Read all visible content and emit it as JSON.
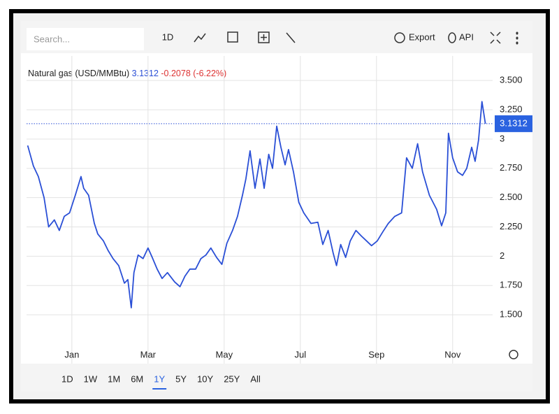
{
  "toolbar": {
    "search_placeholder": "Search...",
    "interval": "1D",
    "export": "Export",
    "api": "API"
  },
  "ranges": {
    "items": [
      "1D",
      "1W",
      "1M",
      "6M",
      "1Y",
      "5Y",
      "10Y",
      "25Y",
      "All"
    ],
    "active": 4
  },
  "chart_data": {
    "type": "line",
    "last_price": 3.1312,
    "change": -0.2078,
    "change_pct": "(-6.22%)",
    "series": [
      {
        "name": "Natural gas (USD/MMBtu)",
        "color": "#2a4fd6",
        "x": [
          -0.16,
          -0.01,
          0.12,
          0.27,
          0.39,
          0.54,
          0.67,
          0.8,
          0.94,
          1.09,
          1.24,
          1.31,
          1.44,
          1.59,
          1.68,
          1.83,
          1.95,
          2.08,
          2.23,
          2.38,
          2.47,
          2.56,
          2.63,
          2.74,
          2.87,
          3.0,
          3.11,
          3.24,
          3.37,
          3.51,
          3.7,
          3.84,
          3.97,
          4.1,
          4.25,
          4.39,
          4.52,
          4.65,
          4.8,
          4.94,
          5.07,
          5.22,
          5.35,
          5.48,
          5.57,
          5.68,
          5.81,
          5.94,
          6.05,
          6.17,
          6.27,
          6.38,
          6.49,
          6.6,
          6.69,
          6.82,
          6.96,
          7.09,
          7.28,
          7.46,
          7.59,
          7.73,
          7.86,
          7.95,
          8.06,
          8.19,
          8.31,
          8.46,
          8.61,
          8.74,
          8.87,
          9.02,
          9.17,
          9.31,
          9.48,
          9.66,
          9.79,
          9.94,
          10.08,
          10.21,
          10.39,
          10.58,
          10.71,
          10.82,
          10.89,
          11.0,
          11.13,
          11.26,
          11.37,
          11.5,
          11.59,
          11.68,
          11.77,
          11.86
        ],
        "values": [
          2.945,
          2.77,
          2.68,
          2.5,
          2.25,
          2.31,
          2.22,
          2.34,
          2.37,
          2.52,
          2.68,
          2.58,
          2.52,
          2.28,
          2.19,
          2.13,
          2.05,
          1.98,
          1.92,
          1.77,
          1.8,
          1.56,
          1.86,
          2.01,
          1.98,
          2.07,
          1.99,
          1.89,
          1.81,
          1.86,
          1.78,
          1.74,
          1.83,
          1.89,
          1.89,
          1.98,
          2.01,
          2.07,
          1.99,
          1.93,
          2.11,
          2.22,
          2.34,
          2.52,
          2.66,
          2.9,
          2.58,
          2.83,
          2.58,
          2.87,
          2.75,
          3.11,
          2.93,
          2.78,
          2.91,
          2.72,
          2.46,
          2.37,
          2.28,
          2.29,
          2.1,
          2.22,
          2.03,
          1.92,
          2.1,
          1.99,
          2.13,
          2.22,
          2.17,
          2.13,
          2.09,
          2.13,
          2.21,
          2.28,
          2.34,
          2.37,
          2.84,
          2.75,
          2.96,
          2.72,
          2.52,
          2.4,
          2.26,
          2.37,
          3.05,
          2.84,
          2.72,
          2.69,
          2.75,
          2.93,
          2.81,
          2.99,
          3.32,
          3.1312
        ]
      }
    ],
    "xlim": [
      -0.19,
      12.05
    ],
    "xticks": [
      {
        "value": 1,
        "label": "Jan"
      },
      {
        "value": 3,
        "label": "Mar"
      },
      {
        "value": 5,
        "label": "May"
      },
      {
        "value": 7,
        "label": "Jul"
      },
      {
        "value": 9,
        "label": "Sep"
      },
      {
        "value": 11,
        "label": "Nov"
      }
    ],
    "ylim": [
      1.25,
      3.62
    ],
    "yticks": [
      {
        "value": 1.5,
        "label": "1.500"
      },
      {
        "value": 1.75,
        "label": "1.750"
      },
      2,
      {
        "value": 2.25,
        "label": "2.250"
      },
      {
        "value": 2.5,
        "label": "2.500"
      },
      {
        "value": 2.75,
        "label": "2.750"
      },
      3,
      {
        "value": 3.25,
        "label": "3.250"
      },
      {
        "value": 3.5,
        "label": "3.500"
      }
    ],
    "grid": true
  }
}
